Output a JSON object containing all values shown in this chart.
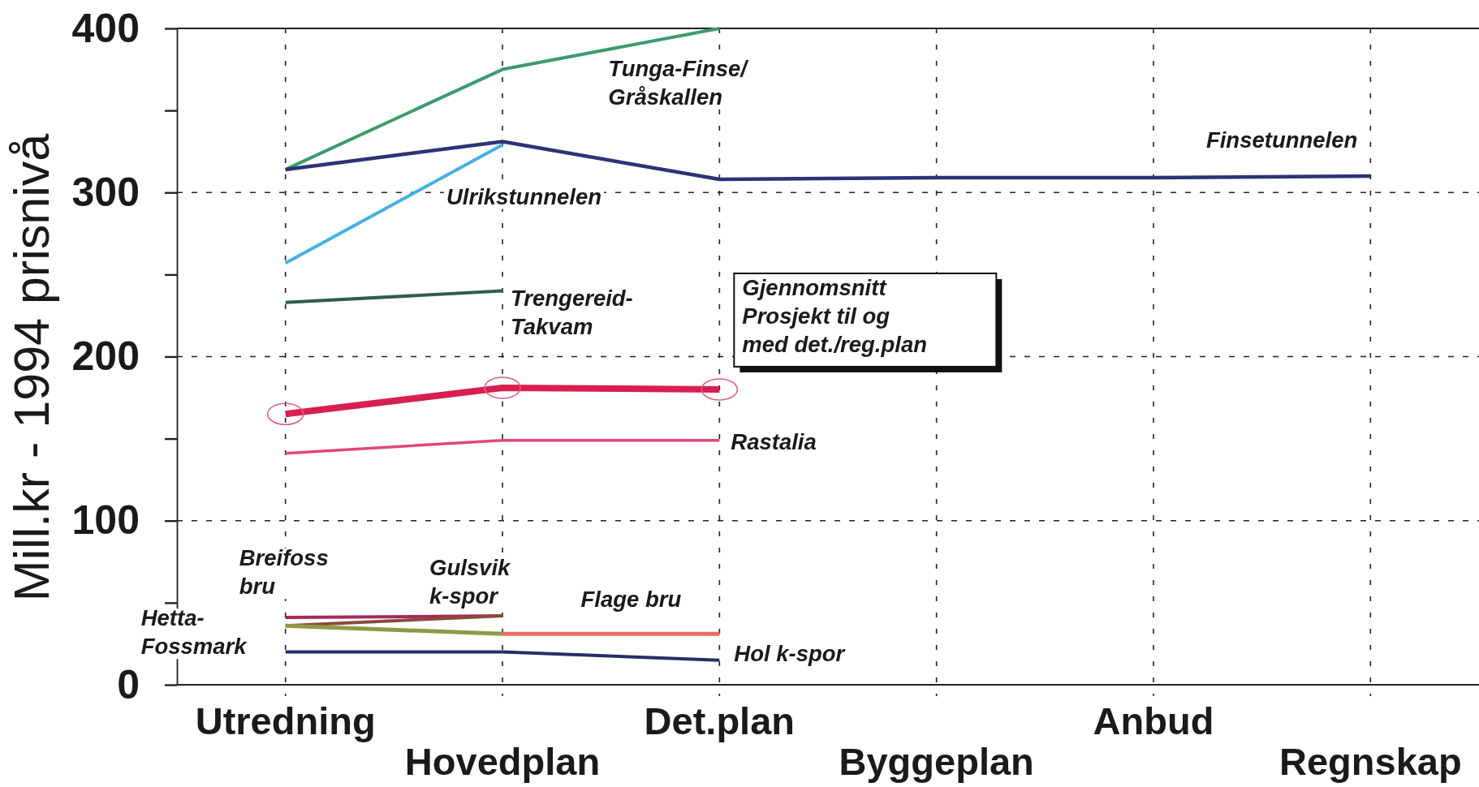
{
  "chart_data": {
    "type": "line",
    "ylabel": "Mill.kr - 1994 prisnivå",
    "categories": [
      "Utredning",
      "Hovedplan",
      "Det.plan",
      "Byggeplan",
      "Anbud",
      "Regnskap"
    ],
    "ylim": [
      0,
      400
    ],
    "yticks": [
      0,
      {
        "value": 50,
        "label": null
      },
      100,
      {
        "value": 150,
        "label": null
      },
      200,
      {
        "value": 250,
        "label": null
      },
      300,
      {
        "value": 350,
        "label": null
      },
      400
    ],
    "grid": true,
    "series": [
      {
        "name": "Tunga-Finse/Gråskallen",
        "color": "#3c9c6c",
        "values": [
          314,
          375,
          400,
          null,
          null,
          null
        ]
      },
      {
        "name": "Finsetunnelen",
        "color": "#2c3476",
        "values": [
          314,
          331,
          308,
          309,
          309,
          310
        ]
      },
      {
        "name": "Ulrikstunnelen",
        "color": "#44b0e6",
        "values": [
          257,
          329,
          null,
          null,
          null,
          null
        ]
      },
      {
        "name": "Trengereid-Takvam",
        "color": "#2f5f4b",
        "values": [
          233,
          240,
          null,
          null,
          null,
          null
        ]
      },
      {
        "name": "Gjennomsnitt Prosjekt til og med det./reg.plan",
        "color": "#d81f4f",
        "marker": "circle",
        "values": [
          165,
          181,
          180,
          null,
          null,
          null
        ]
      },
      {
        "name": "Rastalia",
        "color": "#e04680",
        "values": [
          141,
          149,
          149,
          null,
          null,
          null
        ]
      },
      {
        "name": "Breifoss bru",
        "color": "#a42a5c",
        "values": [
          41,
          42,
          null,
          null,
          null,
          null
        ]
      },
      {
        "name": "Gulsvik k-spor",
        "color": "#8c4a3c",
        "values": [
          36,
          42,
          null,
          null,
          null,
          null
        ]
      },
      {
        "name": "Hetta-Fossmark",
        "color": "#8e9a48",
        "values": [
          36,
          31,
          null,
          null,
          null,
          null
        ]
      },
      {
        "name": "Flage bru",
        "color": "#ec6a62",
        "values": [
          null,
          31,
          31,
          null,
          null,
          null
        ]
      },
      {
        "name": "Hol k-spor",
        "color": "#262e66",
        "values": [
          20,
          20,
          15,
          null,
          null,
          null
        ]
      }
    ]
  }
}
